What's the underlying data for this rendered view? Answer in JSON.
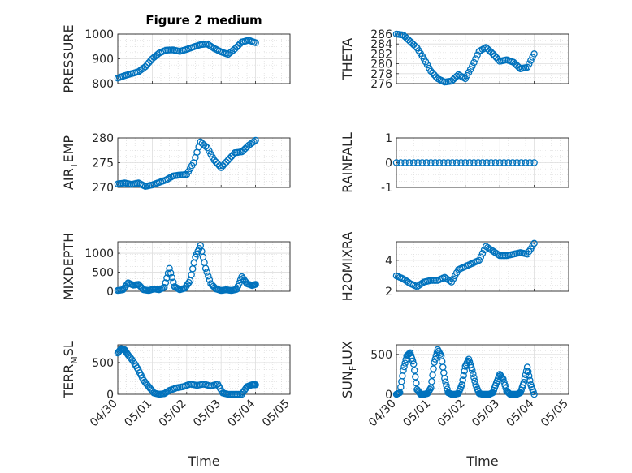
{
  "figure": {
    "title": "Figure 2 medium",
    "xlabel": "Time"
  },
  "chart_data": [
    {
      "type": "scatter",
      "marker": "open-circle",
      "color": "#0072BD",
      "grid": true,
      "title": "Figure 2 medium",
      "ylabel": "PRESSURE",
      "ylim": [
        800,
        1000
      ],
      "yticks": [
        "800",
        "900",
        "1000"
      ],
      "xlim": [
        "04/30",
        "05/05"
      ],
      "xticks": [
        "04/30",
        "05/01",
        "05/02",
        "05/03",
        "05/04",
        "05/05"
      ],
      "series": [
        {
          "x_days": [
            0.0,
            0.2,
            0.4,
            0.6,
            0.8,
            1.0,
            1.2,
            1.4,
            1.6,
            1.8,
            2.0,
            2.2,
            2.4,
            2.6,
            2.8,
            3.0,
            3.2,
            3.4,
            3.6,
            3.8,
            4.0
          ],
          "y": [
            822,
            832,
            840,
            848,
            868,
            900,
            923,
            935,
            936,
            930,
            938,
            948,
            957,
            960,
            942,
            928,
            918,
            940,
            968,
            975,
            965
          ]
        }
      ]
    },
    {
      "type": "scatter",
      "marker": "open-circle",
      "color": "#0072BD",
      "grid": true,
      "ylabel": "THETA",
      "ylim": [
        276,
        286
      ],
      "yticks": [
        "276",
        "278",
        "280",
        "282",
        "284",
        "286"
      ],
      "xlim": [
        "04/30",
        "05/05"
      ],
      "xticks": [
        "04/30",
        "05/01",
        "05/02",
        "05/03",
        "05/04",
        "05/05"
      ],
      "series": [
        {
          "x_days": [
            0.0,
            0.2,
            0.4,
            0.6,
            0.8,
            1.0,
            1.2,
            1.4,
            1.6,
            1.8,
            2.0,
            2.2,
            2.4,
            2.6,
            2.8,
            3.0,
            3.2,
            3.4,
            3.6,
            3.8,
            4.0
          ],
          "y": [
            286,
            285.8,
            284.5,
            283.2,
            281,
            278.5,
            277,
            276.3,
            276.5,
            277.8,
            277,
            279.5,
            282.5,
            283.3,
            282,
            280.5,
            280.8,
            280.3,
            279,
            279.3,
            282
          ]
        }
      ]
    },
    {
      "type": "scatter",
      "marker": "open-circle",
      "color": "#0072BD",
      "grid": true,
      "ylabel": "AIR_TEMP",
      "ylim": [
        270,
        280
      ],
      "yticks": [
        "270",
        "275",
        "280"
      ],
      "xlim": [
        "04/30",
        "05/05"
      ],
      "xticks": [
        "04/30",
        "05/01",
        "05/02",
        "05/03",
        "05/04",
        "05/05"
      ],
      "series": [
        {
          "x_days": [
            0.0,
            0.2,
            0.4,
            0.6,
            0.8,
            1.0,
            1.2,
            1.4,
            1.6,
            1.8,
            2.0,
            2.2,
            2.4,
            2.6,
            2.8,
            3.0,
            3.2,
            3.4,
            3.6,
            3.8,
            4.0
          ],
          "y": [
            270.7,
            270.9,
            270.6,
            270.9,
            270.2,
            270.5,
            271,
            271.5,
            272.3,
            272.5,
            272.6,
            275,
            279.2,
            278,
            275.5,
            274,
            275.5,
            277,
            277.2,
            278.5,
            279.5
          ]
        }
      ]
    },
    {
      "type": "scatter",
      "marker": "open-circle",
      "color": "#0072BD",
      "grid": true,
      "ylabel": "RAINFALL",
      "ylim": [
        -1,
        1
      ],
      "yticks": [
        "-1",
        "0",
        "1"
      ],
      "xlim": [
        "04/30",
        "05/05"
      ],
      "xticks": [
        "04/30",
        "05/01",
        "05/02",
        "05/03",
        "05/04",
        "05/05"
      ],
      "series": [
        {
          "x_days": [
            0.0,
            0.5,
            1.0,
            1.5,
            2.0,
            2.5,
            3.0,
            3.5,
            4.0
          ],
          "y": [
            0,
            0,
            0,
            0,
            0,
            0,
            0,
            0,
            0
          ]
        }
      ]
    },
    {
      "type": "scatter",
      "marker": "open-circle",
      "color": "#0072BD",
      "grid": true,
      "ylabel": "MIXDEPTH",
      "ylim": [
        0,
        1300
      ],
      "yticks": [
        "0",
        "500",
        "1000"
      ],
      "xlim": [
        "04/30",
        "05/05"
      ],
      "xticks": [
        "04/30",
        "05/01",
        "05/02",
        "05/03",
        "05/04",
        "05/05"
      ],
      "series": [
        {
          "x_days": [
            0.0,
            0.15,
            0.3,
            0.45,
            0.6,
            0.75,
            0.9,
            1.05,
            1.2,
            1.35,
            1.5,
            1.65,
            1.8,
            1.95,
            2.1,
            2.25,
            2.4,
            2.55,
            2.7,
            2.85,
            3.0,
            3.15,
            3.3,
            3.45,
            3.6,
            3.75,
            3.9,
            4.0
          ],
          "y": [
            20,
            40,
            220,
            160,
            180,
            40,
            20,
            60,
            40,
            100,
            600,
            120,
            40,
            80,
            280,
            900,
            1200,
            600,
            200,
            60,
            20,
            40,
            20,
            50,
            380,
            200,
            150,
            180
          ]
        }
      ]
    },
    {
      "type": "scatter",
      "marker": "open-circle",
      "color": "#0072BD",
      "grid": true,
      "ylabel": "H2OMIXRA",
      "ylim": [
        2,
        5.2
      ],
      "yticks": [
        "2",
        "4"
      ],
      "xlim": [
        "04/30",
        "05/05"
      ],
      "xticks": [
        "04/30",
        "05/01",
        "05/02",
        "05/03",
        "05/04",
        "05/05"
      ],
      "series": [
        {
          "x_days": [
            0.0,
            0.2,
            0.4,
            0.6,
            0.8,
            1.0,
            1.2,
            1.4,
            1.6,
            1.8,
            2.0,
            2.2,
            2.4,
            2.6,
            2.8,
            3.0,
            3.2,
            3.4,
            3.6,
            3.8,
            4.0
          ],
          "y": [
            3.0,
            2.8,
            2.5,
            2.3,
            2.6,
            2.7,
            2.7,
            2.9,
            2.6,
            3.4,
            3.6,
            3.8,
            4.0,
            4.9,
            4.6,
            4.3,
            4.3,
            4.4,
            4.5,
            4.4,
            5.1
          ]
        }
      ]
    },
    {
      "type": "scatter",
      "marker": "open-circle",
      "color": "#0072BD",
      "grid": true,
      "ylabel": "TERR_MSL",
      "ylim": [
        0,
        780
      ],
      "yticks": [
        "0",
        "500"
      ],
      "xlim": [
        "04/30",
        "05/05"
      ],
      "xticks": [
        "04/30",
        "05/01",
        "05/02",
        "05/03",
        "05/04",
        "05/05"
      ],
      "series": [
        {
          "x_days": [
            0.0,
            0.1,
            0.2,
            0.3,
            0.45,
            0.6,
            0.75,
            0.9,
            1.05,
            1.2,
            1.35,
            1.5,
            1.7,
            1.9,
            2.1,
            2.3,
            2.5,
            2.7,
            2.9,
            3.05,
            3.2,
            3.4,
            3.6,
            3.75,
            3.9,
            4.0
          ],
          "y": [
            650,
            720,
            700,
            620,
            520,
            380,
            220,
            120,
            20,
            0,
            10,
            60,
            100,
            120,
            160,
            140,
            160,
            130,
            160,
            20,
            0,
            0,
            0,
            120,
            150,
            150
          ]
        }
      ]
    },
    {
      "type": "scatter",
      "marker": "open-circle",
      "color": "#0072BD",
      "grid": true,
      "ylabel": "SUN_FLUX",
      "ylim": [
        0,
        620
      ],
      "yticks": [
        "0",
        "500"
      ],
      "xlim": [
        "04/30",
        "05/05"
      ],
      "xticks": [
        "04/30",
        "05/01",
        "05/02",
        "05/03",
        "05/04",
        "05/05"
      ],
      "series": [
        {
          "x_days": [
            0.0,
            0.1,
            0.2,
            0.3,
            0.4,
            0.5,
            0.6,
            0.7,
            0.8,
            0.9,
            1.0,
            1.1,
            1.2,
            1.3,
            1.4,
            1.5,
            1.6,
            1.7,
            1.8,
            1.9,
            2.0,
            2.1,
            2.2,
            2.3,
            2.4,
            2.5,
            2.6,
            2.7,
            2.8,
            2.9,
            3.0,
            3.1,
            3.2,
            3.3,
            3.4,
            3.5,
            3.6,
            3.7,
            3.8,
            3.9,
            4.0
          ],
          "y": [
            0,
            20,
            300,
            480,
            520,
            380,
            60,
            0,
            0,
            10,
            80,
            400,
            560,
            480,
            200,
            20,
            0,
            0,
            10,
            120,
            350,
            440,
            300,
            120,
            10,
            0,
            0,
            0,
            20,
            140,
            250,
            190,
            40,
            0,
            0,
            0,
            20,
            150,
            340,
            120,
            0
          ]
        }
      ]
    }
  ]
}
